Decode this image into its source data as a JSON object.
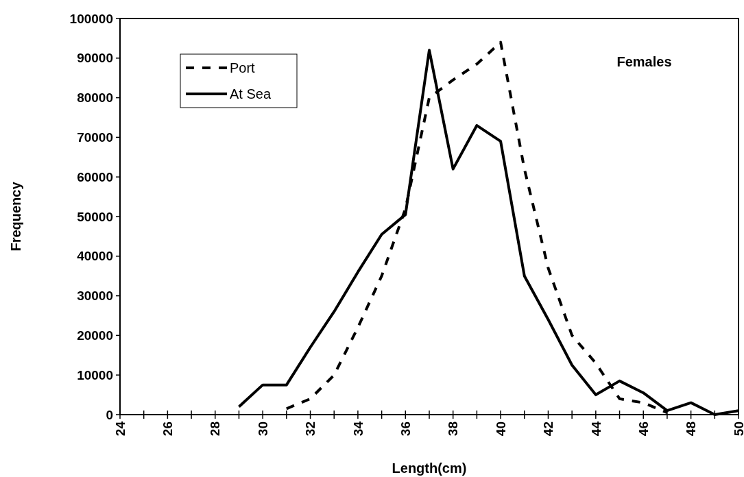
{
  "chart_data": {
    "type": "line",
    "xlabel": "Length(cm)",
    "ylabel": "Frequency",
    "annotations": [
      "Females"
    ],
    "xlim": [
      24,
      50
    ],
    "xticks": [
      24,
      {
        "value": 25,
        "label": null
      },
      26,
      {
        "value": 27,
        "label": null
      },
      28,
      {
        "value": 29,
        "label": null
      },
      30,
      {
        "value": 31,
        "label": null
      },
      32,
      {
        "value": 33,
        "label": null
      },
      34,
      {
        "value": 35,
        "label": null
      },
      36,
      {
        "value": 37,
        "label": null
      },
      38,
      {
        "value": 39,
        "label": null
      },
      40,
      {
        "value": 41,
        "label": null
      },
      42,
      {
        "value": 43,
        "label": null
      },
      44,
      {
        "value": 45,
        "label": null
      },
      46,
      {
        "value": 47,
        "label": null
      },
      48,
      {
        "value": 49,
        "label": null
      },
      50
    ],
    "ylim": [
      0,
      100000
    ],
    "yticks": [
      0,
      10000,
      20000,
      30000,
      40000,
      50000,
      60000,
      70000,
      80000,
      90000,
      100000
    ],
    "grid": false,
    "legend": "top left",
    "series": [
      {
        "name": "Port",
        "color": "#000000",
        "line_style": "dashed",
        "x": [
          31,
          32,
          33,
          34,
          35,
          36,
          37,
          38,
          39,
          40,
          41,
          42,
          43,
          44,
          45,
          46,
          47
        ],
        "values": [
          1500,
          4000,
          10000,
          22000,
          35000,
          52000,
          80000,
          84500,
          88500,
          94000,
          62000,
          37000,
          20000,
          13000,
          4000,
          3000,
          500
        ]
      },
      {
        "name": "At Sea",
        "color": "#000000",
        "line_style": "solid",
        "x": [
          29,
          30,
          31,
          32,
          33,
          34,
          35,
          36,
          37,
          38,
          39,
          40,
          41,
          42,
          43,
          44,
          45,
          46,
          47,
          48,
          49,
          50
        ],
        "values": [
          2000,
          7500,
          7500,
          17000,
          26000,
          36000,
          45500,
          50500,
          92000,
          62000,
          73000,
          69000,
          35000,
          24000,
          12500,
          5000,
          8500,
          5500,
          1000,
          3000,
          0,
          1000
        ]
      }
    ]
  }
}
